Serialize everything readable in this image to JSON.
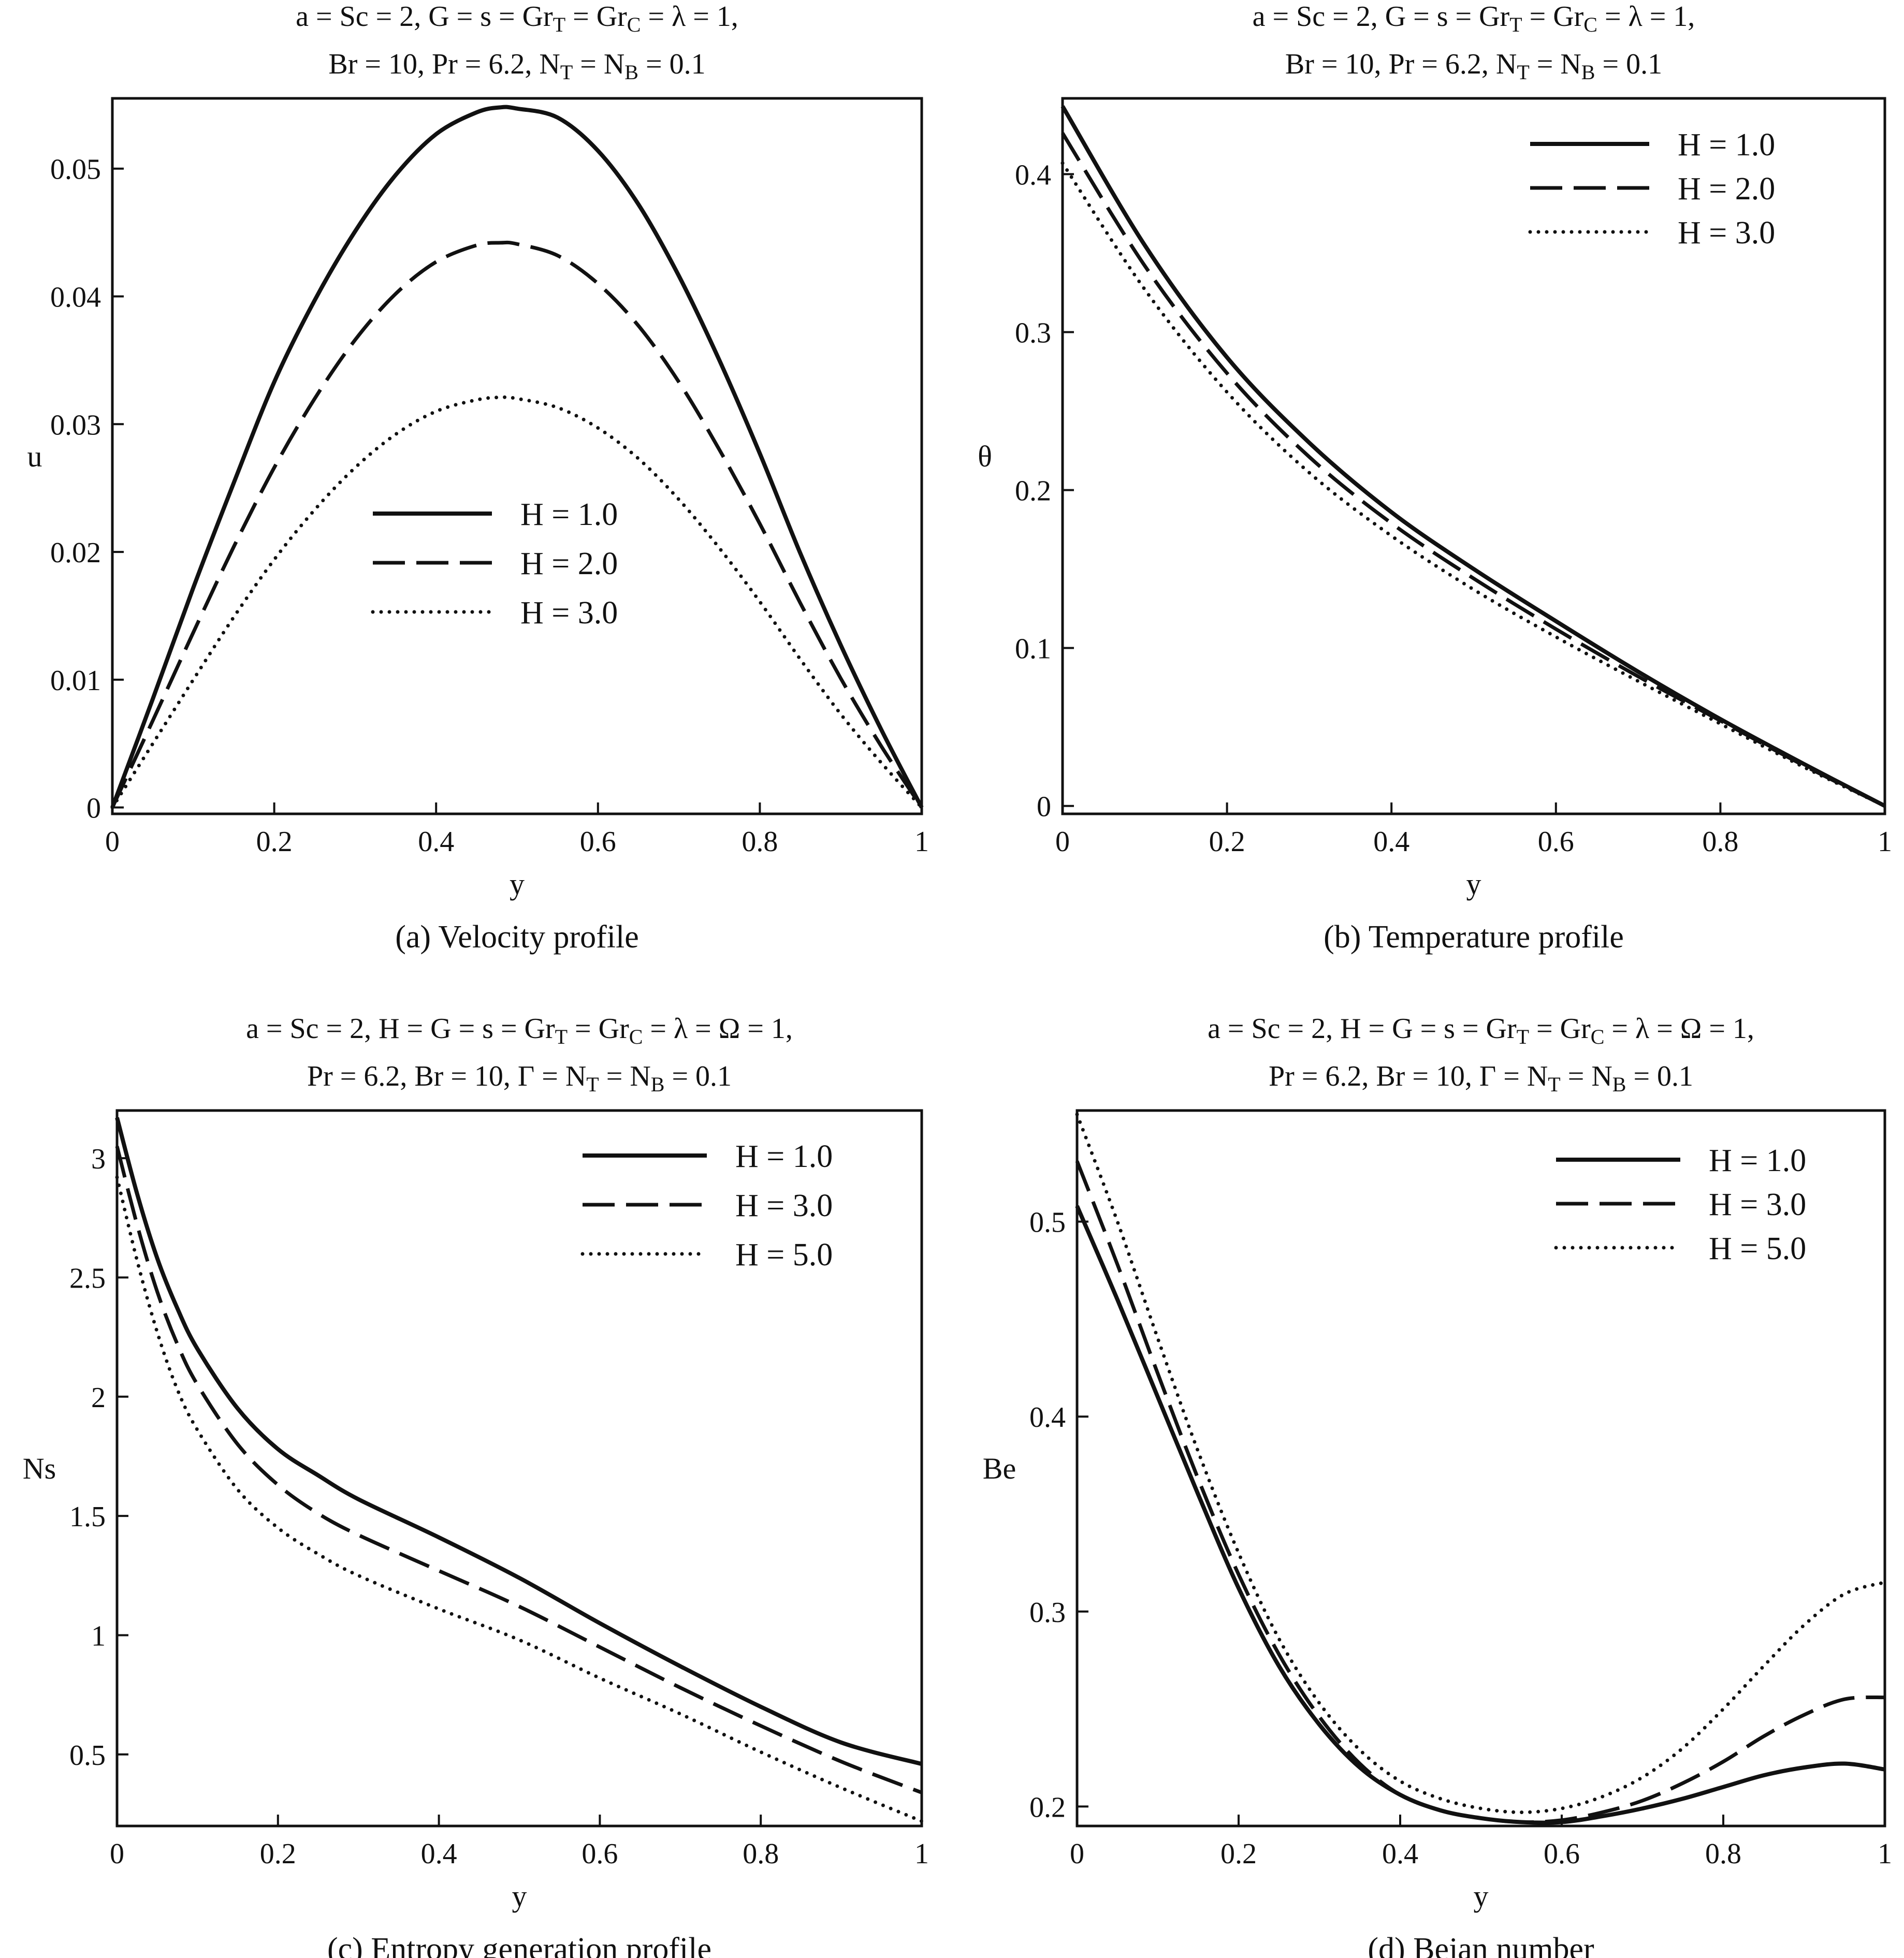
{
  "figure": {
    "colors": {
      "ink": "#111111",
      "background": "#ffffff"
    }
  },
  "chart_data": [
    {
      "id": "a",
      "type": "line",
      "title_lines": [
        [
          {
            "t": "a = Sc = 2, G = s  =  Gr"
          },
          {
            "t": "T",
            "sub": true
          },
          {
            "t": " = Gr"
          },
          {
            "t": "C",
            "sub": true
          },
          {
            "t": " = λ = 1,"
          }
        ],
        [
          {
            "t": "Br = 10, Pr = 6.2, N"
          },
          {
            "t": "T",
            "sub": true
          },
          {
            "t": " = N"
          },
          {
            "t": "B",
            "sub": true
          },
          {
            "t": " = 0.1"
          }
        ]
      ],
      "caption": "(a) Velocity profile",
      "xlabel": "y",
      "ylabel": "u",
      "xlim": [
        0,
        1
      ],
      "ylim": [
        -0.0005,
        0.0555
      ],
      "xticks": [
        0,
        0.2,
        0.4,
        0.6,
        0.8,
        1
      ],
      "xtick_labels": [
        "0",
        "0.2",
        "0.4",
        "0.6",
        "0.8",
        "1"
      ],
      "yticks": [
        0,
        0.01,
        0.02,
        0.03,
        0.04,
        0.05
      ],
      "ytick_labels": [
        "0",
        "0.01",
        "0.02",
        "0.03",
        "0.04",
        "0.05"
      ],
      "legend": {
        "position": "center"
      },
      "series": [
        {
          "name": "H  = 1.0",
          "style": "solid",
          "x": [
            0,
            0.05,
            0.1,
            0.15,
            0.2,
            0.25,
            0.3,
            0.35,
            0.4,
            0.45,
            0.48,
            0.5,
            0.55,
            0.6,
            0.65,
            0.7,
            0.75,
            0.8,
            0.85,
            0.9,
            0.95,
            1
          ],
          "y": [
            0,
            0.0085,
            0.0172,
            0.0254,
            0.0333,
            0.0397,
            0.0451,
            0.0495,
            0.0527,
            0.0544,
            0.0548,
            0.0547,
            0.054,
            0.0514,
            0.0472,
            0.0416,
            0.035,
            0.0277,
            0.0199,
            0.0127,
            0.0061,
            0
          ]
        },
        {
          "name": "H = 2.0",
          "style": "dashed",
          "x": [
            0,
            0.05,
            0.1,
            0.15,
            0.2,
            0.25,
            0.3,
            0.35,
            0.4,
            0.45,
            0.48,
            0.5,
            0.55,
            0.6,
            0.65,
            0.7,
            0.75,
            0.8,
            0.85,
            0.9,
            0.95,
            1
          ],
          "y": [
            0,
            0.0068,
            0.0137,
            0.0204,
            0.0266,
            0.032,
            0.0366,
            0.0402,
            0.0427,
            0.044,
            0.0442,
            0.0441,
            0.0432,
            0.041,
            0.0377,
            0.0333,
            0.028,
            0.0222,
            0.016,
            0.0101,
            0.0048,
            0
          ]
        },
        {
          "name": "H = 3.0",
          "style": "dotted",
          "x": [
            0,
            0.05,
            0.1,
            0.15,
            0.2,
            0.25,
            0.3,
            0.35,
            0.4,
            0.45,
            0.48,
            0.5,
            0.55,
            0.6,
            0.65,
            0.7,
            0.75,
            0.8,
            0.85,
            0.9,
            0.95,
            1
          ],
          "y": [
            0,
            0.005,
            0.01,
            0.0149,
            0.0194,
            0.0233,
            0.0266,
            0.0292,
            0.031,
            0.0319,
            0.0321,
            0.032,
            0.0313,
            0.0297,
            0.0273,
            0.0241,
            0.0203,
            0.0161,
            0.0116,
            0.0073,
            0.0035,
            0
          ]
        }
      ]
    },
    {
      "id": "b",
      "type": "line",
      "title_lines": [
        [
          {
            "t": "a = Sc = 2, G = s  =  Gr"
          },
          {
            "t": "T",
            "sub": true
          },
          {
            "t": " = Gr"
          },
          {
            "t": "C",
            "sub": true
          },
          {
            "t": " = λ = 1,"
          }
        ],
        [
          {
            "t": "Br = 10, Pr = 6.2, N"
          },
          {
            "t": "T",
            "sub": true
          },
          {
            "t": " = N"
          },
          {
            "t": "B",
            "sub": true
          },
          {
            "t": " = 0.1"
          }
        ]
      ],
      "caption": "(b) Temperature profile",
      "xlabel": "y",
      "ylabel": "θ",
      "xlim": [
        0,
        1
      ],
      "ylim": [
        -0.005,
        0.448
      ],
      "xticks": [
        0,
        0.2,
        0.4,
        0.6,
        0.8,
        1
      ],
      "xtick_labels": [
        "0",
        "0.2",
        "0.4",
        "0.6",
        "0.8",
        "1"
      ],
      "yticks": [
        0,
        0.1,
        0.2,
        0.3,
        0.4
      ],
      "ytick_labels": [
        "0",
        "0.1",
        "0.2",
        "0.3",
        "0.4"
      ],
      "legend": {
        "position": "top-right"
      },
      "series": [
        {
          "name": "H = 1.0",
          "style": "solid",
          "x": [
            0,
            0.1,
            0.2,
            0.3,
            0.4,
            0.5,
            0.6,
            0.7,
            0.8,
            0.9,
            1
          ],
          "y": [
            0.443,
            0.355,
            0.284,
            0.23,
            0.186,
            0.15,
            0.117,
            0.085,
            0.055,
            0.027,
            0
          ]
        },
        {
          "name": "H = 2.0",
          "style": "dashed",
          "x": [
            0,
            0.1,
            0.2,
            0.3,
            0.4,
            0.5,
            0.6,
            0.7,
            0.8,
            0.9,
            1
          ],
          "y": [
            0.426,
            0.342,
            0.274,
            0.221,
            0.179,
            0.144,
            0.112,
            0.082,
            0.054,
            0.026,
            0
          ]
        },
        {
          "name": "H = 3.0",
          "style": "dotted",
          "x": [
            0,
            0.1,
            0.2,
            0.3,
            0.4,
            0.5,
            0.6,
            0.7,
            0.8,
            0.9,
            1
          ],
          "y": [
            0.407,
            0.327,
            0.262,
            0.211,
            0.171,
            0.137,
            0.107,
            0.079,
            0.052,
            0.025,
            0
          ]
        }
      ]
    },
    {
      "id": "c",
      "type": "line",
      "title_lines": [
        [
          {
            "t": "a = Sc = 2, H = G = s = Gr"
          },
          {
            "t": "T",
            "sub": true
          },
          {
            "t": " = Gr"
          },
          {
            "t": "C",
            "sub": true
          },
          {
            "t": " = λ = Ω  = 1,"
          }
        ],
        [
          {
            "t": "Pr = 6.2, Br = 10, Γ = N"
          },
          {
            "t": "T",
            "sub": true
          },
          {
            "t": " = N"
          },
          {
            "t": "B",
            "sub": true
          },
          {
            "t": " = 0.1"
          }
        ]
      ],
      "caption": "(c) Entropy generation profile",
      "xlabel": "y",
      "ylabel": "Ns",
      "xlim": [
        0,
        1
      ],
      "ylim": [
        0.2,
        3.2
      ],
      "xticks": [
        0,
        0.2,
        0.4,
        0.6,
        0.8,
        1
      ],
      "xtick_labels": [
        "0",
        "0.2",
        "0.4",
        "0.6",
        "0.8",
        "1"
      ],
      "yticks": [
        0.5,
        1,
        1.5,
        2,
        2.5,
        3
      ],
      "ytick_labels": [
        "0.5",
        "1",
        "1.5",
        "2",
        "2.5",
        "3"
      ],
      "legend": {
        "position": "top-right"
      },
      "series": [
        {
          "name": "H = 1.0",
          "style": "solid",
          "x": [
            0,
            0.025,
            0.05,
            0.075,
            0.1,
            0.15,
            0.2,
            0.25,
            0.3,
            0.4,
            0.5,
            0.6,
            0.7,
            0.8,
            0.9,
            1
          ],
          "y": [
            3.17,
            2.85,
            2.58,
            2.37,
            2.2,
            1.95,
            1.78,
            1.67,
            1.57,
            1.41,
            1.24,
            1.05,
            0.87,
            0.7,
            0.55,
            0.46
          ]
        },
        {
          "name": "H = 3.0",
          "style": "dashed",
          "x": [
            0,
            0.025,
            0.05,
            0.075,
            0.1,
            0.15,
            0.2,
            0.25,
            0.3,
            0.4,
            0.5,
            0.6,
            0.7,
            0.8,
            0.9,
            1
          ],
          "y": [
            3.05,
            2.72,
            2.44,
            2.22,
            2.05,
            1.8,
            1.63,
            1.51,
            1.42,
            1.27,
            1.12,
            0.95,
            0.78,
            0.62,
            0.47,
            0.34
          ]
        },
        {
          "name": "H = 5.0",
          "style": "dotted",
          "x": [
            0,
            0.025,
            0.05,
            0.075,
            0.1,
            0.15,
            0.2,
            0.25,
            0.3,
            0.4,
            0.5,
            0.6,
            0.7,
            0.8,
            0.9,
            1
          ],
          "y": [
            2.92,
            2.57,
            2.27,
            2.03,
            1.86,
            1.61,
            1.45,
            1.34,
            1.25,
            1.11,
            0.98,
            0.82,
            0.67,
            0.51,
            0.36,
            0.22
          ]
        }
      ]
    },
    {
      "id": "d",
      "type": "line",
      "title_lines": [
        [
          {
            "t": "a = Sc = 2, H = G = s = Gr"
          },
          {
            "t": "T",
            "sub": true
          },
          {
            "t": " = Gr"
          },
          {
            "t": "C",
            "sub": true
          },
          {
            "t": " = λ = Ω  = 1,"
          }
        ],
        [
          {
            "t": "Pr = 6.2, Br = 10, Γ = N"
          },
          {
            "t": "T",
            "sub": true
          },
          {
            "t": " = N"
          },
          {
            "t": "B",
            "sub": true
          },
          {
            "t": " = 0.1"
          }
        ]
      ],
      "caption": "(d)  Bejan number",
      "xlabel": "y",
      "ylabel": "Be",
      "xlim": [
        0,
        1
      ],
      "ylim": [
        0.19,
        0.557
      ],
      "xticks": [
        0,
        0.2,
        0.4,
        0.6,
        0.8,
        1
      ],
      "xtick_labels": [
        "0",
        "0.2",
        "0.4",
        "0.6",
        "0.8",
        "1"
      ],
      "yticks": [
        0.2,
        0.3,
        0.4,
        0.5
      ],
      "ytick_labels": [
        "0.2",
        "0.3",
        "0.4",
        "0.5"
      ],
      "legend": {
        "position": "top-right"
      },
      "series": [
        {
          "name": "H = 1.0",
          "style": "solid",
          "x": [
            0,
            0.05,
            0.1,
            0.15,
            0.2,
            0.25,
            0.3,
            0.35,
            0.4,
            0.45,
            0.5,
            0.55,
            0.6,
            0.65,
            0.7,
            0.75,
            0.8,
            0.85,
            0.9,
            0.95,
            1
          ],
          "y": [
            0.508,
            0.46,
            0.41,
            0.36,
            0.312,
            0.272,
            0.242,
            0.22,
            0.206,
            0.198,
            0.194,
            0.192,
            0.192,
            0.195,
            0.199,
            0.204,
            0.21,
            0.216,
            0.22,
            0.222,
            0.219
          ]
        },
        {
          "name": "H = 3.0",
          "style": "dashed",
          "x": [
            0,
            0.05,
            0.1,
            0.15,
            0.2,
            0.25,
            0.3,
            0.35,
            0.4,
            0.45,
            0.5,
            0.55,
            0.6,
            0.65,
            0.7,
            0.75,
            0.8,
            0.85,
            0.9,
            0.95,
            1
          ],
          "y": [
            0.531,
            0.478,
            0.422,
            0.368,
            0.319,
            0.278,
            0.246,
            0.222,
            0.206,
            0.198,
            0.194,
            0.192,
            0.193,
            0.197,
            0.203,
            0.212,
            0.223,
            0.236,
            0.247,
            0.255,
            0.256
          ]
        },
        {
          "name": "H = 5.0",
          "style": "dotted",
          "x": [
            0,
            0.05,
            0.1,
            0.15,
            0.2,
            0.25,
            0.3,
            0.35,
            0.4,
            0.45,
            0.5,
            0.55,
            0.6,
            0.65,
            0.7,
            0.75,
            0.8,
            0.85,
            0.9,
            0.95,
            1
          ],
          "y": [
            0.555,
            0.5,
            0.44,
            0.382,
            0.33,
            0.286,
            0.253,
            0.229,
            0.213,
            0.204,
            0.199,
            0.197,
            0.199,
            0.205,
            0.215,
            0.23,
            0.25,
            0.272,
            0.293,
            0.309,
            0.315
          ]
        }
      ]
    }
  ]
}
